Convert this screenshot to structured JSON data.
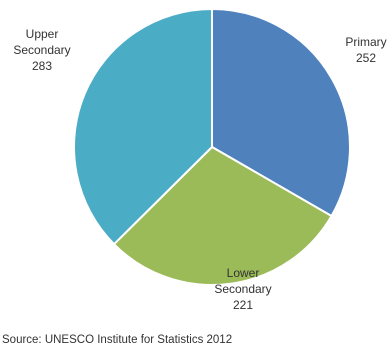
{
  "chart_data": {
    "type": "pie",
    "slices": [
      {
        "label": [
          "Primary"
        ],
        "value": 252,
        "color": "#4f81bd"
      },
      {
        "label": [
          "Lower",
          "Secondary"
        ],
        "value": 221,
        "color": "#9bbb59"
      },
      {
        "label": [
          "Upper",
          "Secondary"
        ],
        "value": 283,
        "color": "#4bacc6"
      }
    ],
    "start_angle_deg": 0,
    "direction": "clockwise",
    "legend": "none",
    "data_labels": "outside"
  },
  "source": "Source: UNESCO Institute for Statistics 2012"
}
